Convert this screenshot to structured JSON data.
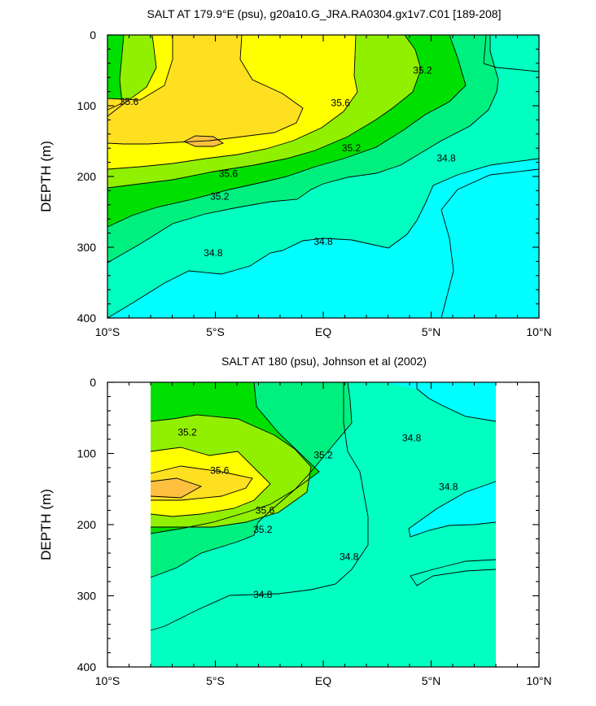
{
  "chart_data": [
    {
      "type": "contour",
      "title": "SALT AT 179.9°E (psu), g20a10.G_JRA.RA0304.gx1v7.C01 [189-208]",
      "ylabel": "DEPTH (m)",
      "xlabel": "",
      "x_ticks": [
        "10°S",
        "5°S",
        "EQ",
        "5°N",
        "10°N"
      ],
      "y_ticks": [
        "0",
        "100",
        "200",
        "300",
        "400"
      ],
      "xlim": [
        -10,
        10
      ],
      "ylim": [
        0,
        400
      ],
      "data_extent": [
        -10,
        10
      ],
      "levels": [
        34.8,
        35.0,
        35.2,
        35.4,
        35.6,
        35.8
      ],
      "colors": [
        "#00FFFF",
        "#00FFC0",
        "#00F080",
        "#00E000",
        "#90F000",
        "#FFFF00",
        "#FFE020",
        "#FFC040"
      ],
      "contour_labels": [
        {
          "text": "35.6",
          "lat": -9.0,
          "depth": 94
        },
        {
          "text": "35.2",
          "lat": 4.6,
          "depth": 50
        },
        {
          "text": "35.6",
          "lat": 0.8,
          "depth": 96
        },
        {
          "text": "35.2",
          "lat": 1.3,
          "depth": 160
        },
        {
          "text": "35.6",
          "lat": -4.4,
          "depth": 196
        },
        {
          "text": "35.2",
          "lat": -4.8,
          "depth": 228
        },
        {
          "text": "34.8",
          "lat": 5.7,
          "depth": 174
        },
        {
          "text": "34.8",
          "lat": -0.0,
          "depth": 292
        },
        {
          "text": "34.8",
          "lat": -5.1,
          "depth": 308
        }
      ]
    },
    {
      "type": "contour",
      "title": "SALT AT 180 (psu), Johnson et al (2002)",
      "ylabel": "DEPTH (m)",
      "xlabel": "",
      "x_ticks": [
        "10°S",
        "5°S",
        "EQ",
        "5°N",
        "10°N"
      ],
      "y_ticks": [
        "0",
        "100",
        "200",
        "300",
        "400"
      ],
      "xlim": [
        -10,
        10
      ],
      "ylim": [
        0,
        400
      ],
      "data_extent": [
        -8,
        8
      ],
      "levels": [
        34.8,
        35.0,
        35.2,
        35.4,
        35.6,
        35.8
      ],
      "colors": [
        "#00FFFF",
        "#00FFC0",
        "#00F080",
        "#00E000",
        "#90F000",
        "#FFFF00",
        "#FFE020",
        "#FFC040"
      ],
      "contour_labels": [
        {
          "text": "35.2",
          "lat": -6.3,
          "depth": 70
        },
        {
          "text": "35.2",
          "lat": -0.0,
          "depth": 102
        },
        {
          "text": "34.8",
          "lat": 4.1,
          "depth": 78
        },
        {
          "text": "35.6",
          "lat": -4.8,
          "depth": 124
        },
        {
          "text": "34.8",
          "lat": 5.8,
          "depth": 147
        },
        {
          "text": "35.6",
          "lat": -2.7,
          "depth": 180
        },
        {
          "text": "35.2",
          "lat": -2.8,
          "depth": 207
        },
        {
          "text": "34.8",
          "lat": 1.2,
          "depth": 245
        },
        {
          "text": "34.8",
          "lat": -2.8,
          "depth": 298
        }
      ]
    }
  ]
}
